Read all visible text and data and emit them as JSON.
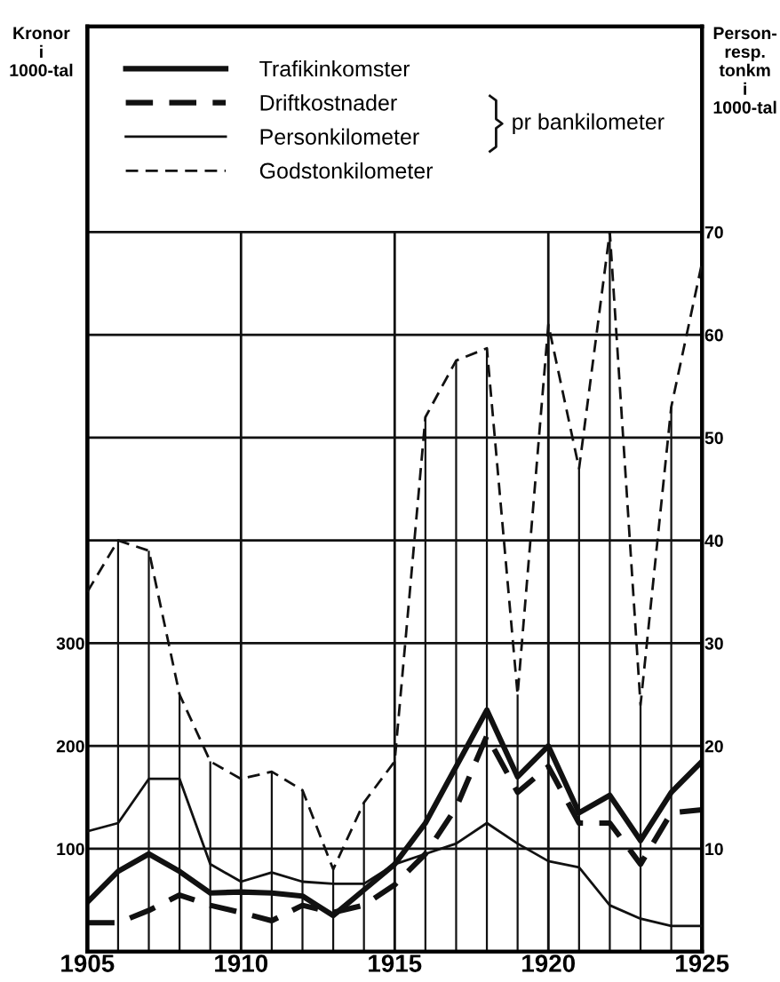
{
  "chart_data": {
    "type": "line",
    "x": [
      1905,
      1906,
      1907,
      1908,
      1909,
      1910,
      1911,
      1912,
      1913,
      1914,
      1915,
      1916,
      1917,
      1918,
      1919,
      1920,
      1921,
      1922,
      1923,
      1924,
      1925
    ],
    "series": [
      {
        "name": "Trafikinkomster",
        "color": "#111111",
        "line_style": "solid",
        "values": [
          48,
          78,
          95,
          78,
          57,
          58,
          57,
          54,
          35,
          60,
          85,
          125,
          180,
          235,
          170,
          200,
          135,
          152,
          108,
          155,
          185
        ]
      },
      {
        "name": "Driftkostnader",
        "color": "#111111",
        "line_style": "dashed",
        "values": [
          28,
          28,
          40,
          55,
          45,
          38,
          30,
          45,
          38,
          45,
          65,
          95,
          140,
          210,
          155,
          180,
          125,
          125,
          85,
          135,
          138
        ]
      },
      {
        "name": "Personkilometer",
        "color": "#111111",
        "line_style": "solid",
        "axis": "y2",
        "values": [
          11.7,
          12.5,
          16.8,
          16.8,
          8.5,
          6.8,
          7.7,
          6.8,
          6.6,
          6.6,
          8.5,
          9.5,
          10.5,
          12.5,
          10.5,
          8.8,
          8.2,
          4.5,
          3.2,
          2.5,
          2.5
        ]
      },
      {
        "name": "Godstonkilometer",
        "color": "#111111",
        "line_style": "dashed",
        "axis": "y2",
        "values": [
          35,
          40,
          39,
          25,
          18.5,
          16.8,
          17.5,
          15.7,
          8,
          14.5,
          18.5,
          52,
          57.5,
          58.7,
          25,
          61,
          47,
          70,
          24,
          53,
          67
        ],
        "errors": [
          null,
          [
            0,
            40
          ],
          [
            0,
            39
          ],
          [
            0,
            25
          ],
          [
            0,
            18.5
          ],
          [
            0,
            16.8
          ],
          [
            0,
            17.5
          ],
          [
            0,
            15.7
          ],
          [
            0,
            8
          ],
          [
            0,
            14.5
          ],
          [
            0,
            18.5
          ],
          [
            0,
            52
          ],
          [
            0,
            57.5
          ],
          [
            0,
            58.7
          ],
          [
            0,
            25
          ],
          [
            0,
            61
          ],
          [
            0,
            47
          ],
          [
            0,
            70
          ],
          [
            0,
            24
          ],
          [
            0,
            53
          ],
          null
        ]
      }
    ],
    "ylabel": "Kronor\ni\n1000-tal",
    "y2label": "Person-\nresp.\ntonkm\ni\n1000-tal",
    "annotations": [
      "pr bankilometer"
    ],
    "xlim": [
      1905,
      1925
    ],
    "xticks": [
      1905,
      1910,
      1915,
      1920,
      1925
    ],
    "ylim": [
      0,
      900
    ],
    "yticks": [
      100,
      200,
      300
    ],
    "y2lim": [
      0,
      90
    ],
    "y2ticks": [
      10,
      20,
      30,
      40,
      50,
      60,
      70
    ],
    "grid": true,
    "legend": "top left",
    "marker": "none"
  }
}
